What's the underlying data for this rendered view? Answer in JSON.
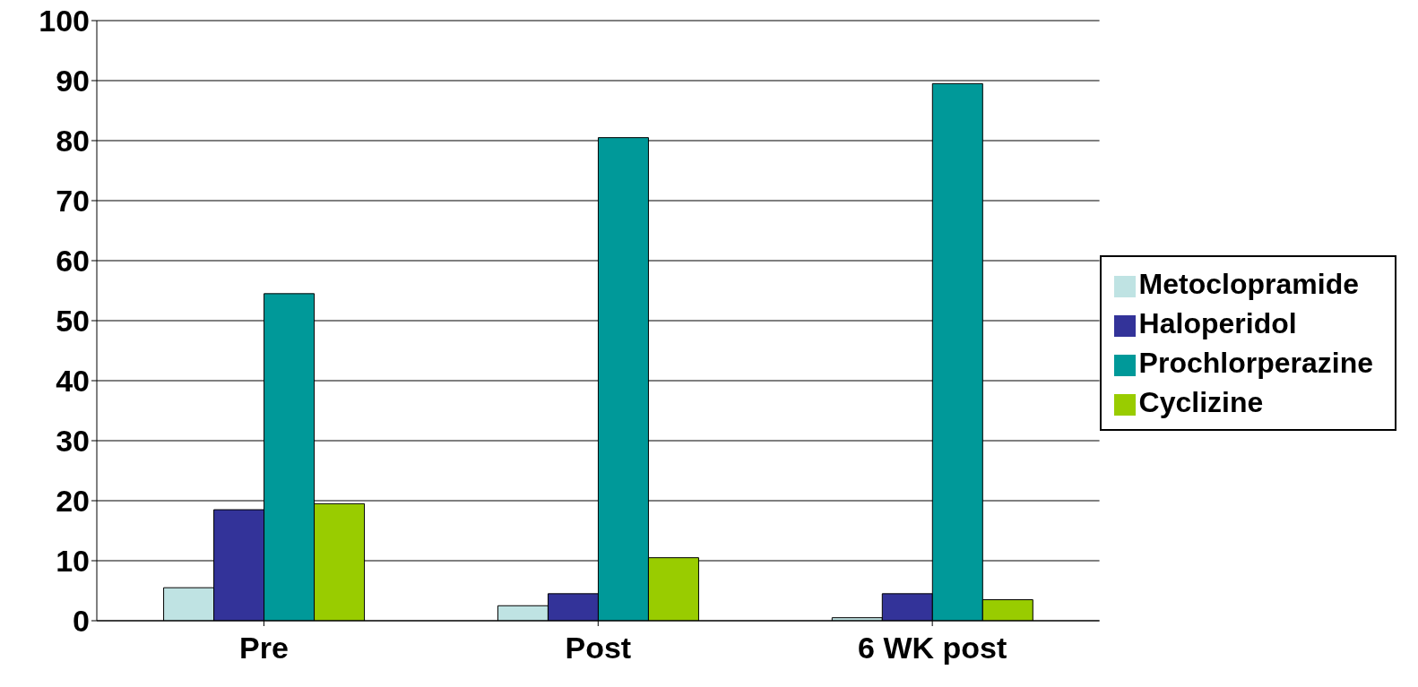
{
  "chart_data": {
    "type": "bar",
    "categories": [
      "Pre",
      "Post",
      "6 WK post"
    ],
    "series": [
      {
        "name": "Metoclopramide",
        "color": "#bfe3e3",
        "values": [
          5.5,
          2.5,
          0.5
        ]
      },
      {
        "name": "Haloperidol",
        "color": "#333399",
        "values": [
          18.5,
          4.5,
          4.5
        ]
      },
      {
        "name": "Prochlorperazine",
        "color": "#009999",
        "values": [
          54.5,
          80.5,
          89.5
        ]
      },
      {
        "name": "Cyclizine",
        "color": "#99cc00",
        "values": [
          19.5,
          10.5,
          3.5
        ]
      }
    ],
    "ylim": [
      0,
      100
    ],
    "yticks": [
      0,
      10,
      20,
      30,
      40,
      50,
      60,
      70,
      80,
      90,
      100
    ],
    "grid": "y",
    "legend": "right"
  }
}
